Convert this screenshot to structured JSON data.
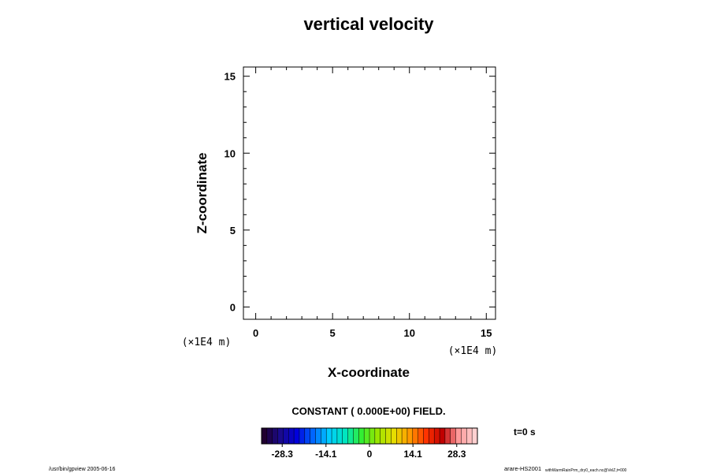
{
  "chart_data": {
    "type": "heatmap",
    "title": "vertical velocity",
    "xlabel": "X-coordinate",
    "ylabel": "Z-coordinate",
    "x_unit": "(×1E4 m)",
    "y_unit": "(×1E4 m)",
    "xlim": [
      -0.8,
      15.6
    ],
    "ylim": [
      -0.8,
      15.6
    ],
    "xticks": [
      0,
      5,
      10,
      15
    ],
    "yticks": [
      0,
      5,
      10,
      15
    ],
    "x_minor_step": 1,
    "y_minor_step": 1,
    "grid": false,
    "field_message": "CONSTANT ( 0.000E+00) FIELD.",
    "field_value": 0,
    "colorbar": {
      "min": -35,
      "max": 35,
      "tick_values": [
        -28.3,
        -14.1,
        0,
        14.1,
        28.3
      ],
      "tick_labels": [
        "-28.3",
        "-14.1",
        "0",
        "14.1",
        "28.3"
      ],
      "levels": 40,
      "stops": [
        "#200030",
        "#1a0a8c",
        "#0000dc",
        "#0066ff",
        "#00ccff",
        "#00e6c0",
        "#33ee33",
        "#99e600",
        "#e6dd00",
        "#ff9900",
        "#ff3300",
        "#c00000",
        "#ff9999",
        "#ffd0d0"
      ]
    },
    "time_label": "t=0 s"
  },
  "footer": {
    "left": "/usr/bin/gpview 2005-06-16",
    "right_main": "arare-HS2001",
    "right_small": "withWarmRainPrm_dry0_each.nc@VelZ,t=000"
  }
}
